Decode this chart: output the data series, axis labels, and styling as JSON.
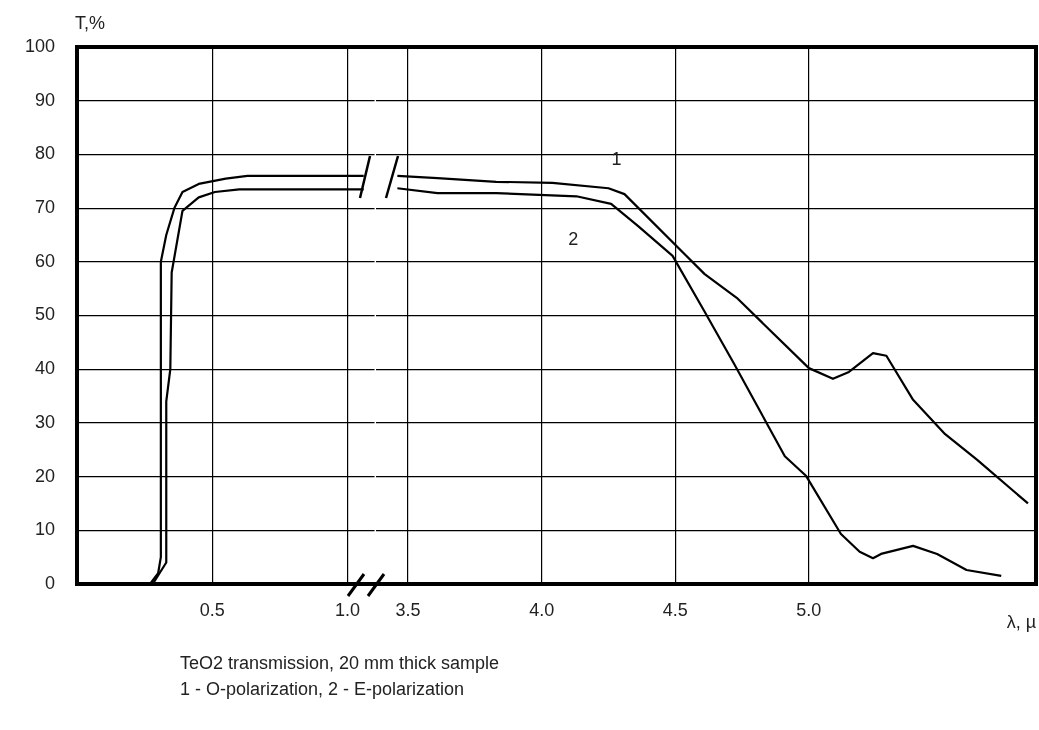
{
  "chart_data": [
    {
      "type": "line",
      "ylabel": "T,%",
      "xlim": [
        0,
        1.1
      ],
      "xticks": [
        {
          "value": 0.5,
          "label": "0.5"
        },
        {
          "value": 1,
          "label": "1.0"
        }
      ],
      "ylim": [
        0,
        100
      ],
      "yticks": [
        0,
        10,
        20,
        30,
        40,
        50,
        60,
        70,
        80,
        90,
        100
      ],
      "grid": true,
      "marker": "none",
      "line_style": "solid",
      "series": [
        {
          "color": "#000000",
          "x": [
            0.27,
            0.3,
            0.31,
            0.31,
            0.33,
            0.36,
            0.39,
            0.45,
            0.55,
            0.63,
            1.06
          ],
          "values": [
            0,
            2,
            5,
            60,
            65,
            70,
            73,
            74.5,
            75.5,
            76,
            76
          ]
        },
        {
          "color": "#000000",
          "x": [
            0.28,
            0.33,
            0.33,
            0.345,
            0.35,
            0.39,
            0.45,
            0.51,
            0.6,
            1.06
          ],
          "values": [
            0,
            4,
            34,
            40,
            58,
            69.5,
            72,
            73,
            73.5,
            73.5
          ]
        }
      ]
    },
    {
      "type": "line",
      "xlabel": "λ, µ",
      "xlim": [
        3.38,
        5.85
      ],
      "xticks": [
        {
          "value": 3.5,
          "label": "3.5"
        },
        {
          "value": 4,
          "label": "4.0"
        },
        {
          "value": 4.5,
          "label": "4.5"
        },
        {
          "value": 5,
          "label": "5.0"
        }
      ],
      "ylim": [
        0,
        100
      ],
      "yticks": [
        0,
        10,
        20,
        30,
        40,
        50,
        60,
        70,
        80,
        90,
        100
      ],
      "tick_labels": "x",
      "grid": true,
      "marker": "none",
      "line_style": "solid",
      "annotations": [
        "TeO2 transmission, 20 mm thick sample",
        "1 - O-polarization, 2 - E-polarization"
      ],
      "series": [
        {
          "name": "1",
          "color": "#000000",
          "x": [
            3.46,
            3.61,
            3.83,
            4.04,
            4.25,
            4.31,
            4.61,
            4.73,
            5.0,
            5.09,
            5.15,
            5.24,
            5.29,
            5.39,
            5.51,
            5.63,
            5.82
          ],
          "values": [
            76,
            75.6,
            74.9,
            74.7,
            73.7,
            72.6,
            57.7,
            53.3,
            40.2,
            38.2,
            39.5,
            43,
            42.5,
            34.3,
            27.9,
            23.1,
            15
          ]
        },
        {
          "name": "2",
          "color": "#000000",
          "x": [
            3.46,
            3.61,
            3.83,
            4.13,
            4.26,
            4.36,
            4.49,
            4.61,
            4.72,
            4.91,
            4.99,
            5.12,
            5.19,
            5.24,
            5.27,
            5.39,
            5.48,
            5.59,
            5.72
          ],
          "values": [
            73.7,
            72.8,
            72.8,
            72.2,
            70.8,
            66.7,
            61.1,
            50.7,
            41,
            23.8,
            20.1,
            9.3,
            6,
            4.8,
            5.6,
            7.1,
            5.6,
            2.6,
            1.5
          ]
        }
      ]
    }
  ]
}
